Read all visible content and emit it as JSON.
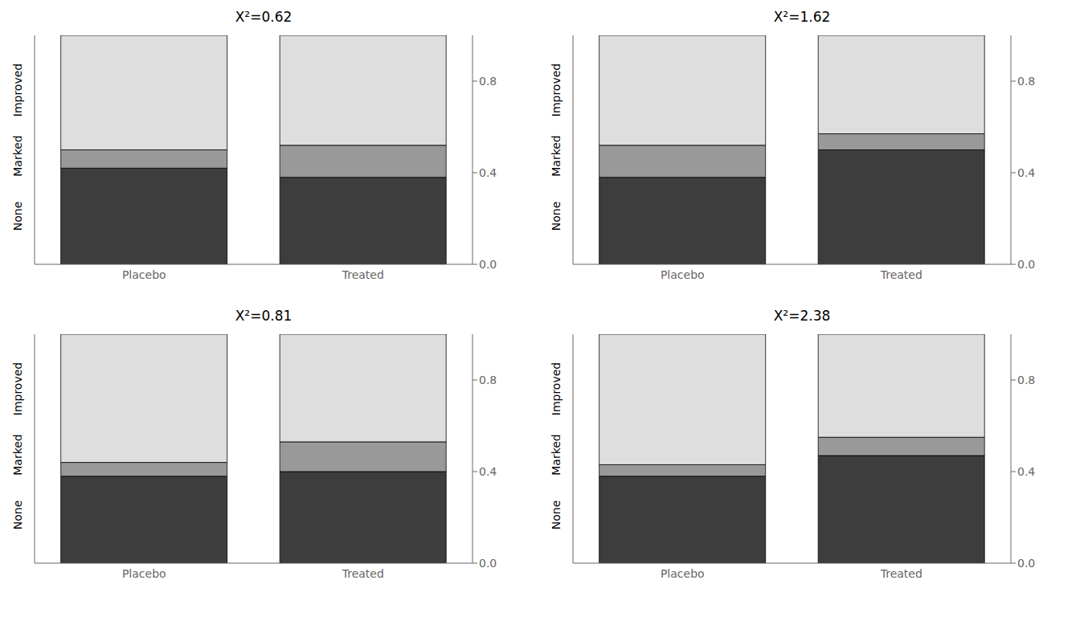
{
  "chart_data": [
    {
      "type": "bar",
      "title": "X²=0.62",
      "stacked": true,
      "categories": [
        "Placebo",
        "Treated"
      ],
      "series": [
        {
          "name": "None",
          "color": "#3d3d3d",
          "values": [
            0.42,
            0.38
          ]
        },
        {
          "name": "Marked",
          "color": "#999999",
          "values": [
            0.08,
            0.14
          ]
        },
        {
          "name": "Improved",
          "color": "#dedede",
          "values": [
            0.5,
            0.48
          ]
        }
      ],
      "ylim": [
        0,
        1.0
      ],
      "yticks": [
        {
          "value": 0.0,
          "label": "0.0"
        },
        0.4,
        0.8
      ],
      "grid": false
    },
    {
      "type": "bar",
      "title": "X²=1.62",
      "stacked": true,
      "categories": [
        "Placebo",
        "Treated"
      ],
      "series": [
        {
          "name": "None",
          "color": "#3d3d3d",
          "values": [
            0.38,
            0.5
          ]
        },
        {
          "name": "Marked",
          "color": "#999999",
          "values": [
            0.14,
            0.07
          ]
        },
        {
          "name": "Improved",
          "color": "#dedede",
          "values": [
            0.48,
            0.43
          ]
        }
      ],
      "ylim": [
        0,
        1.0
      ],
      "yticks": [
        {
          "value": 0.0,
          "label": "0.0"
        },
        0.4,
        0.8
      ],
      "grid": false
    },
    {
      "type": "bar",
      "title": "X²=0.81",
      "stacked": true,
      "categories": [
        "Placebo",
        "Treated"
      ],
      "series": [
        {
          "name": "None",
          "color": "#3d3d3d",
          "values": [
            0.38,
            0.4
          ]
        },
        {
          "name": "Marked",
          "color": "#999999",
          "values": [
            0.06,
            0.13
          ]
        },
        {
          "name": "Improved",
          "color": "#dedede",
          "values": [
            0.56,
            0.47
          ]
        }
      ],
      "ylim": [
        0,
        1.0
      ],
      "yticks": [
        {
          "value": 0.0,
          "label": "0.0"
        },
        0.4,
        0.8
      ],
      "grid": false
    },
    {
      "type": "bar",
      "title": "X²=2.38",
      "stacked": true,
      "categories": [
        "Placebo",
        "Treated"
      ],
      "series": [
        {
          "name": "None",
          "color": "#3d3d3d",
          "values": [
            0.38,
            0.47
          ]
        },
        {
          "name": "Marked",
          "color": "#999999",
          "values": [
            0.05,
            0.08
          ]
        },
        {
          "name": "Improved",
          "color": "#dedede",
          "values": [
            0.57,
            0.45
          ]
        }
      ],
      "ylim": [
        0,
        1.0
      ],
      "yticks": [
        {
          "value": 0.0,
          "label": "0.0"
        },
        0.4,
        0.8
      ],
      "grid": false
    }
  ]
}
